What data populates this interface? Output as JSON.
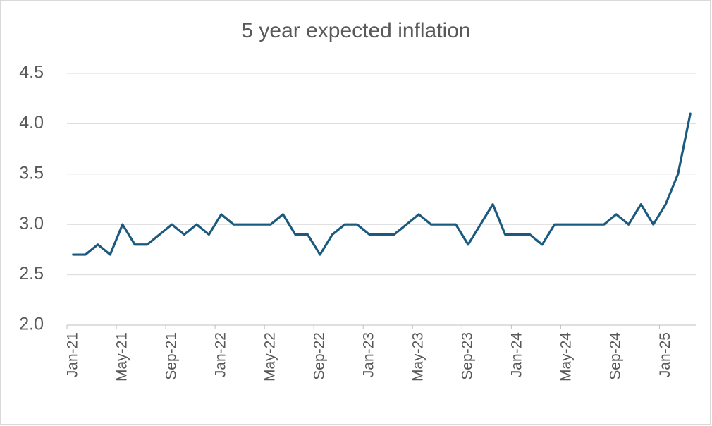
{
  "chart_data": {
    "type": "line",
    "title": "5 year expected inflation",
    "categories": [
      "Jan-21",
      null,
      null,
      null,
      "May-21",
      null,
      null,
      null,
      "Sep-21",
      null,
      null,
      null,
      "Jan-22",
      null,
      null,
      null,
      "May-22",
      null,
      null,
      null,
      "Sep-22",
      null,
      null,
      null,
      "Jan-23",
      null,
      null,
      null,
      "May-23",
      null,
      null,
      null,
      "Sep-23",
      null,
      null,
      null,
      "Jan-24",
      null,
      null,
      null,
      "May-24",
      null,
      null,
      null,
      "Sep-24",
      null,
      null,
      null,
      "Jan-25",
      null,
      null
    ],
    "series": [
      {
        "name": "5 year expected inflation",
        "color": "#1b5a7e",
        "values": [
          2.7,
          2.7,
          2.8,
          2.7,
          3.0,
          2.8,
          2.8,
          2.9,
          3.0,
          2.9,
          3.0,
          2.9,
          3.1,
          3.0,
          3.0,
          3.0,
          3.0,
          3.1,
          2.9,
          2.9,
          2.7,
          2.9,
          3.0,
          3.0,
          2.9,
          2.9,
          2.9,
          3.0,
          3.1,
          3.0,
          3.0,
          3.0,
          2.8,
          3.0,
          3.2,
          2.9,
          2.9,
          2.9,
          2.8,
          3.0,
          3.0,
          3.0,
          3.0,
          3.0,
          3.1,
          3.0,
          3.2,
          3.0,
          3.2,
          3.5,
          4.1
        ]
      }
    ],
    "ylim": [
      2.0,
      4.5
    ],
    "yticks": [
      {
        "value": 2.0,
        "label": "2.0"
      },
      2.5,
      {
        "value": 3.0,
        "label": "3.0"
      },
      3.5,
      {
        "value": 4.0,
        "label": "4.0"
      },
      4.5
    ],
    "grid": true
  }
}
